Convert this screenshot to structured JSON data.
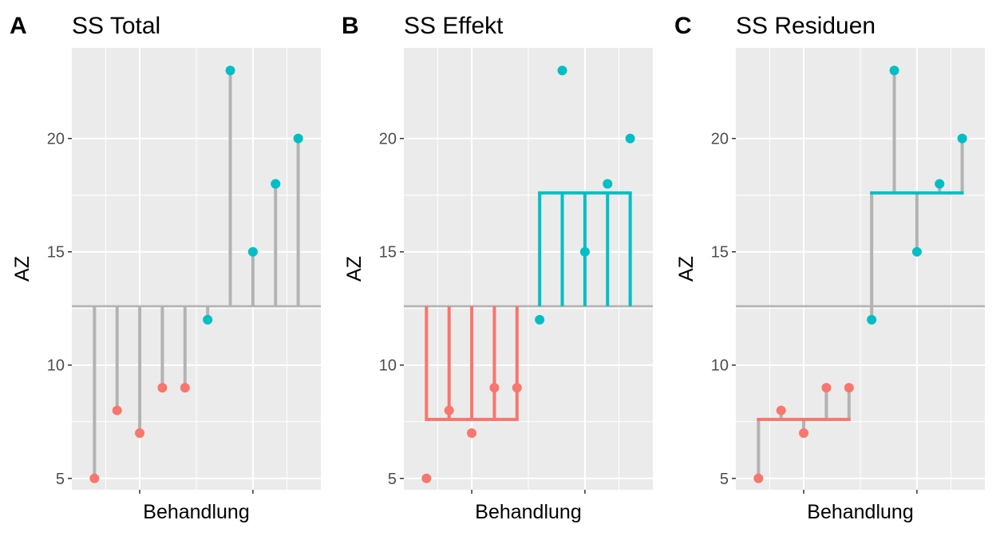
{
  "colors": {
    "group1": "#F8766D",
    "group2": "#00BFC4",
    "grand_mean_line": "#b3b3b3",
    "panel_bg": "#EBEBEB",
    "grid": "#ffffff"
  },
  "chart_data": [
    {
      "type": "scatter",
      "tag": "A",
      "title": "SS Total",
      "xlabel": "Behandlung",
      "ylabel": "AZ",
      "ylim": [
        4.5,
        24.0
      ],
      "yticks": [
        5,
        10,
        15,
        20
      ],
      "grand_mean": 12.6,
      "group_means": [
        7.6,
        17.6
      ],
      "segments": "total",
      "series": [
        {
          "values": [
            5,
            8,
            7,
            9,
            9
          ]
        },
        {
          "values": [
            12,
            23,
            15,
            18,
            20
          ]
        }
      ]
    },
    {
      "type": "scatter",
      "tag": "B",
      "title": "SS Effekt",
      "xlabel": "Behandlung",
      "ylabel": "AZ",
      "ylim": [
        4.5,
        24.0
      ],
      "yticks": [
        5,
        10,
        15,
        20
      ],
      "grand_mean": 12.6,
      "group_means": [
        7.6,
        17.6
      ],
      "segments": "effect",
      "series": [
        {
          "values": [
            5,
            8,
            7,
            9,
            9
          ]
        },
        {
          "values": [
            12,
            23,
            15,
            18,
            20
          ]
        }
      ]
    },
    {
      "type": "scatter",
      "tag": "C",
      "title": "SS Residuen",
      "xlabel": "Behandlung",
      "ylabel": "AZ",
      "ylim": [
        4.5,
        24.0
      ],
      "yticks": [
        5,
        10,
        15,
        20
      ],
      "grand_mean": 12.6,
      "group_means": [
        7.6,
        17.6
      ],
      "segments": "residual",
      "series": [
        {
          "values": [
            5,
            8,
            7,
            9,
            9
          ]
        },
        {
          "values": [
            12,
            23,
            15,
            18,
            20
          ]
        }
      ]
    }
  ]
}
